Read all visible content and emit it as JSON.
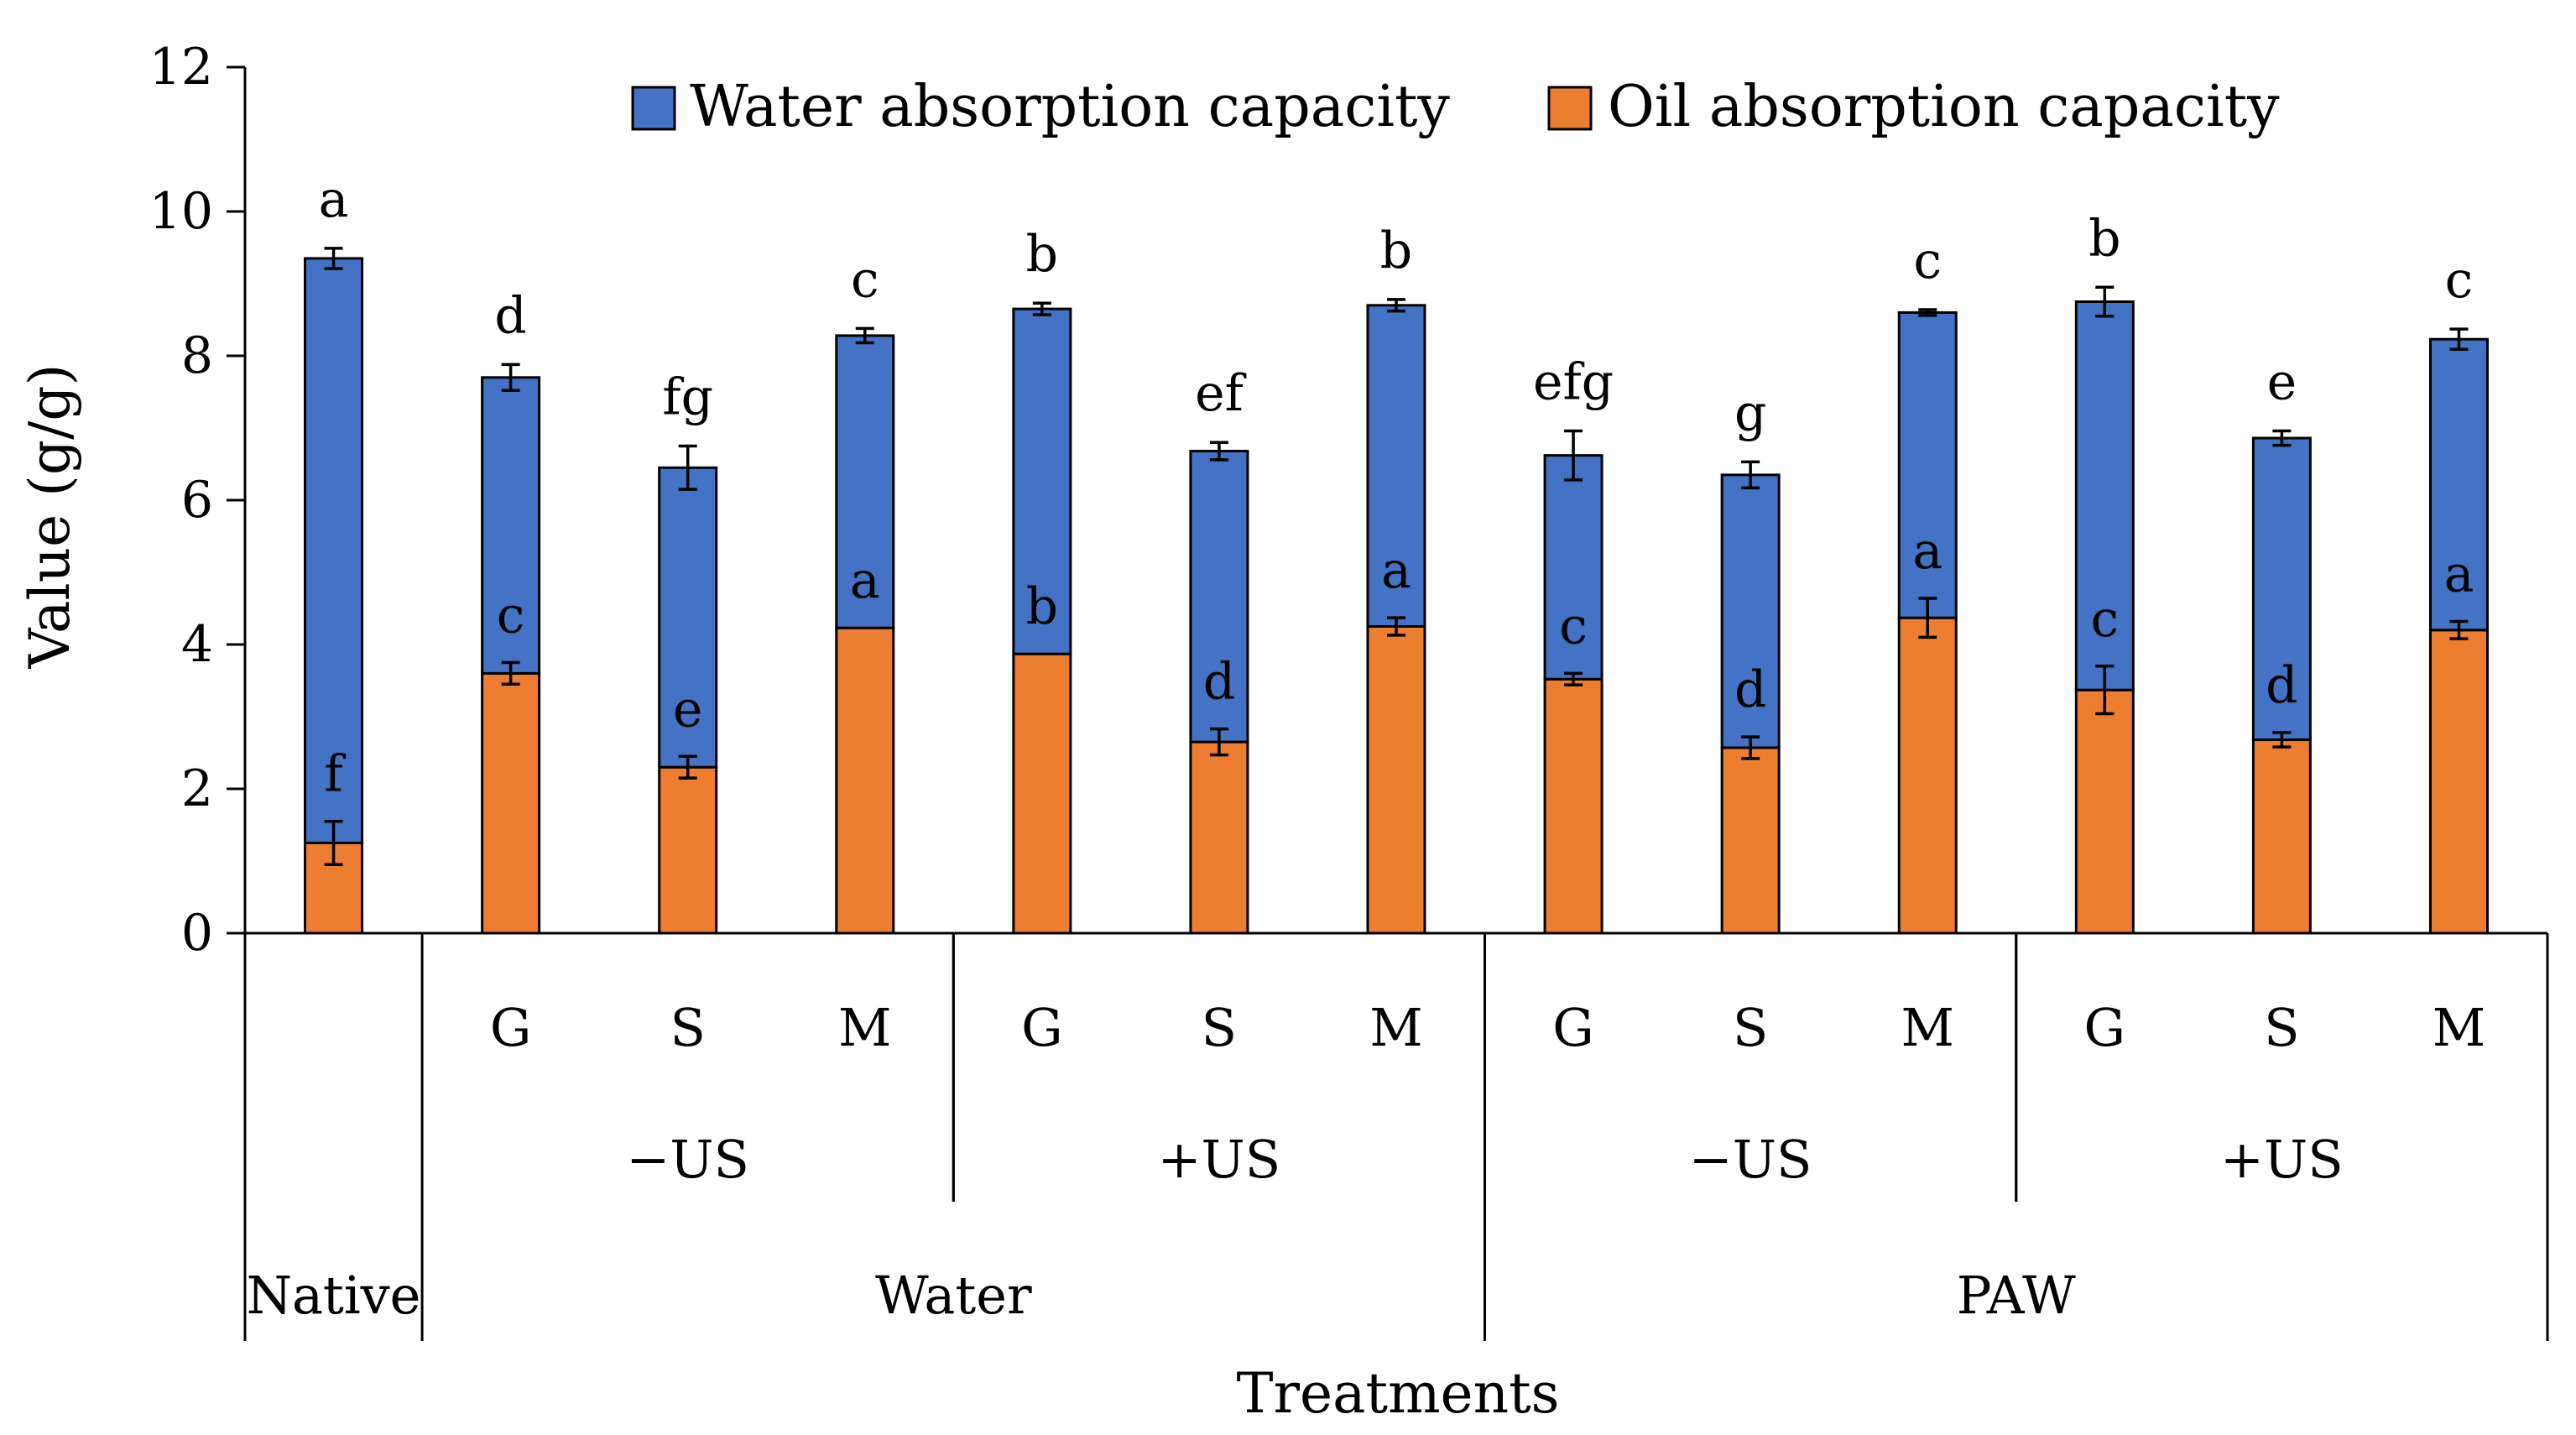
{
  "chart_data": {
    "type": "bar",
    "stacked": true,
    "ylabel": "Value (g/g)",
    "xlabel": "Treatments",
    "ylim": [
      0,
      12
    ],
    "yticks": [
      "0",
      "2",
      "4",
      "6",
      "8",
      "10",
      "12"
    ],
    "legend": {
      "position": "top",
      "entries": [
        "Water absorption capacity",
        "Oil absorption capacity"
      ]
    },
    "categories": [
      "Native",
      "G",
      "S",
      "M",
      "G",
      "S",
      "M",
      "G",
      "S",
      "M",
      "G",
      "S",
      "M"
    ],
    "level2_groups": [
      {
        "label": "−US",
        "bars": [
          1,
          3
        ]
      },
      {
        "label": "+US",
        "bars": [
          4,
          6
        ]
      },
      {
        "label": "−US",
        "bars": [
          7,
          9
        ]
      },
      {
        "label": "+US",
        "bars": [
          10,
          12
        ]
      }
    ],
    "level3_groups": [
      {
        "label": "Native",
        "bars": [
          0,
          0
        ]
      },
      {
        "label": "Water",
        "bars": [
          1,
          6
        ]
      },
      {
        "label": "PAW",
        "bars": [
          7,
          12
        ]
      }
    ],
    "series": [
      {
        "name": "Oil absorption capacity",
        "color": "#ED7D31",
        "values": [
          1.25,
          3.6,
          2.3,
          4.23,
          3.87,
          2.65,
          4.25,
          3.52,
          2.57,
          4.37,
          3.37,
          2.68,
          4.2
        ],
        "errors": [
          0.3,
          0.15,
          0.15,
          0.0,
          0.0,
          0.18,
          0.12,
          0.08,
          0.15,
          0.27,
          0.33,
          0.1,
          0.12
        ],
        "letters": [
          "f",
          "c",
          "e",
          "a",
          "b",
          "d",
          "a",
          "c",
          "d",
          "a",
          "c",
          "d",
          "a"
        ]
      },
      {
        "name": "Water absorption capacity",
        "color": "#4472C4",
        "values": [
          8.1,
          4.1,
          4.15,
          4.05,
          4.78,
          4.03,
          4.45,
          3.1,
          3.78,
          4.23,
          5.38,
          4.18,
          4.03
        ],
        "errors": [
          0.14,
          0.18,
          0.3,
          0.1,
          0.08,
          0.12,
          0.08,
          0.34,
          0.18,
          0.04,
          0.2,
          0.1,
          0.14
        ],
        "letters": [
          "a",
          "d",
          "fg",
          "c",
          "b",
          "ef",
          "b",
          "efg",
          "g",
          "c",
          "b",
          "e",
          "c"
        ]
      }
    ]
  }
}
